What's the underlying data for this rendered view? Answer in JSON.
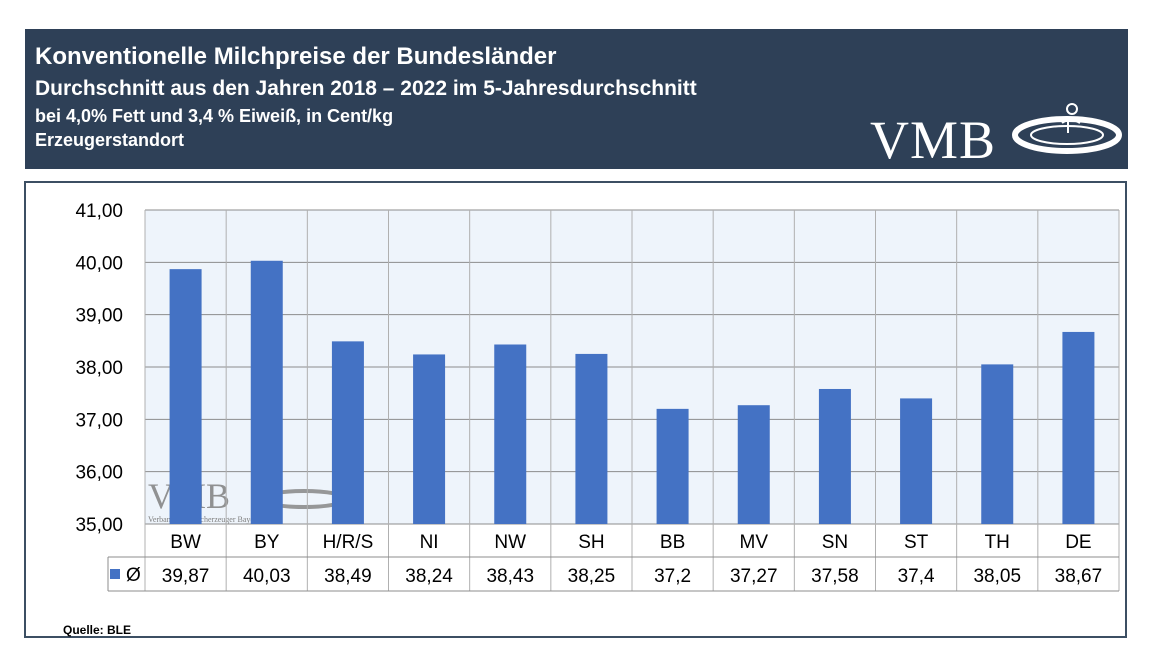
{
  "header": {
    "title": "Konventionelle Milchpreise der Bundesländer",
    "subtitle1": "Durchschnitt aus den Jahren 2018 – 2022 im 5-Jahresdurchschnitt",
    "subtitle2": "bei 4,0% Fett und 3,4 % Eiweiß, in Cent/kg",
    "subtitle3": "Erzeugerstandort",
    "logo": "VMB"
  },
  "watermark": {
    "logo": "VMB",
    "caption": "Verband der Milcherzeuger Bayern e.V."
  },
  "source": "Quelle: BLE",
  "colors": {
    "header_bg": "#2e4057",
    "bar": "#4472c4",
    "plot_bg": "#eef4fb"
  },
  "chart_data": {
    "type": "bar",
    "categories": [
      "BW",
      "BY",
      "H/R/S",
      "NI",
      "NW",
      "SH",
      "BB",
      "MV",
      "SN",
      "ST",
      "TH",
      "DE"
    ],
    "series": [
      {
        "name": "Ø",
        "values": [
          39.87,
          40.03,
          38.49,
          38.24,
          38.43,
          38.25,
          37.2,
          37.27,
          37.58,
          37.4,
          38.05,
          38.67
        ]
      }
    ],
    "table_labels": [
      "39,87",
      "40,03",
      "38,49",
      "38,24",
      "38,43",
      "38,25",
      "37,2",
      "37,27",
      "37,58",
      "37,4",
      "38,05",
      "38,67"
    ],
    "y_ticks": [
      "35,00",
      "36,00",
      "37,00",
      "38,00",
      "39,00",
      "40,00",
      "41,00"
    ],
    "ylim": [
      35,
      41
    ],
    "grid": true,
    "legend": "data-table"
  }
}
